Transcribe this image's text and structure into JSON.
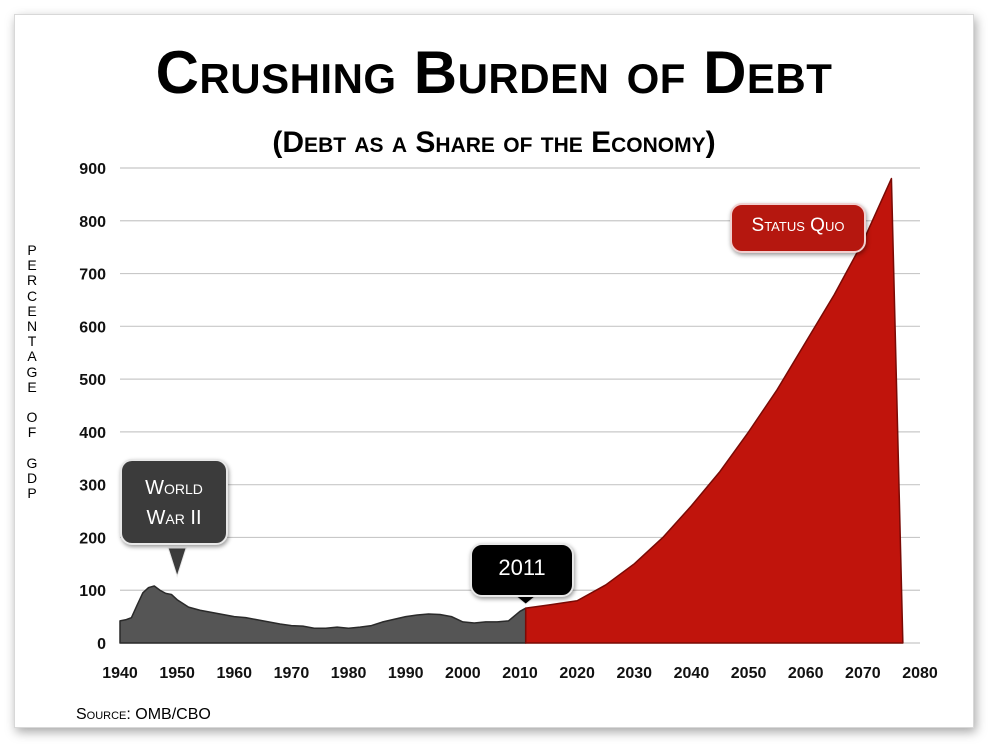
{
  "chart_data": {
    "type": "area",
    "title": "Crushing Burden of Debt",
    "subtitle": "(Debt as a Share of the Economy)",
    "ylabel": "Percentage of GDP",
    "xlabel": "",
    "xlim": [
      1940,
      2080
    ],
    "ylim": [
      0,
      900
    ],
    "x_ticks": [
      "1940",
      "1950",
      "1960",
      "1970",
      "1980",
      "1990",
      "2000",
      "2010",
      "2020",
      "2030",
      "2040",
      "2050",
      "2060",
      "2070",
      "2080"
    ],
    "y_ticks": [
      "0",
      "100",
      "200",
      "300",
      "400",
      "500",
      "600",
      "700",
      "800",
      "900"
    ],
    "grid": "horizontal",
    "series": [
      {
        "name": "",
        "color": "#555555",
        "x": [
          1940,
          1941,
          1942,
          1943,
          1944,
          1945,
          1946,
          1947,
          1948,
          1949,
          1950,
          1952,
          1954,
          1956,
          1958,
          1960,
          1962,
          1964,
          1966,
          1968,
          1970,
          1972,
          1974,
          1976,
          1978,
          1980,
          1982,
          1984,
          1986,
          1988,
          1990,
          1992,
          1994,
          1996,
          1998,
          2000,
          2002,
          2004,
          2006,
          2008,
          2010,
          2011
        ],
        "y": [
          42,
          44,
          48,
          72,
          95,
          105,
          108,
          100,
          94,
          92,
          82,
          68,
          62,
          58,
          54,
          50,
          48,
          44,
          40,
          36,
          33,
          32,
          28,
          28,
          30,
          28,
          30,
          33,
          40,
          45,
          50,
          53,
          55,
          54,
          50,
          40,
          38,
          40,
          40,
          42,
          60,
          66
        ]
      },
      {
        "name": "Status Quo",
        "color": "#c0140c",
        "x": [
          2011,
          2015,
          2020,
          2025,
          2030,
          2035,
          2040,
          2045,
          2050,
          2055,
          2060,
          2065,
          2070,
          2075,
          2077
        ],
        "y": [
          66,
          72,
          80,
          110,
          150,
          200,
          260,
          325,
          400,
          480,
          570,
          660,
          760,
          880,
          0
        ]
      }
    ],
    "annotations": [
      {
        "text_line1": "World",
        "text_line2": "War II",
        "x": 1950,
        "y": 100
      },
      {
        "text": "2011",
        "x": 2011,
        "y": 66
      },
      {
        "text": "Status Quo"
      }
    ],
    "source": "Source: OMB/CBO"
  },
  "ylabel_letters": [
    "P",
    "E",
    "R",
    "C",
    "E",
    "N",
    "T",
    "A",
    "G",
    "E",
    "",
    "O",
    "F",
    "",
    "G",
    "D",
    "P"
  ],
  "colors": {
    "grid": "#c8c8c8",
    "historic": "#555555",
    "projection": "#c0140c"
  }
}
